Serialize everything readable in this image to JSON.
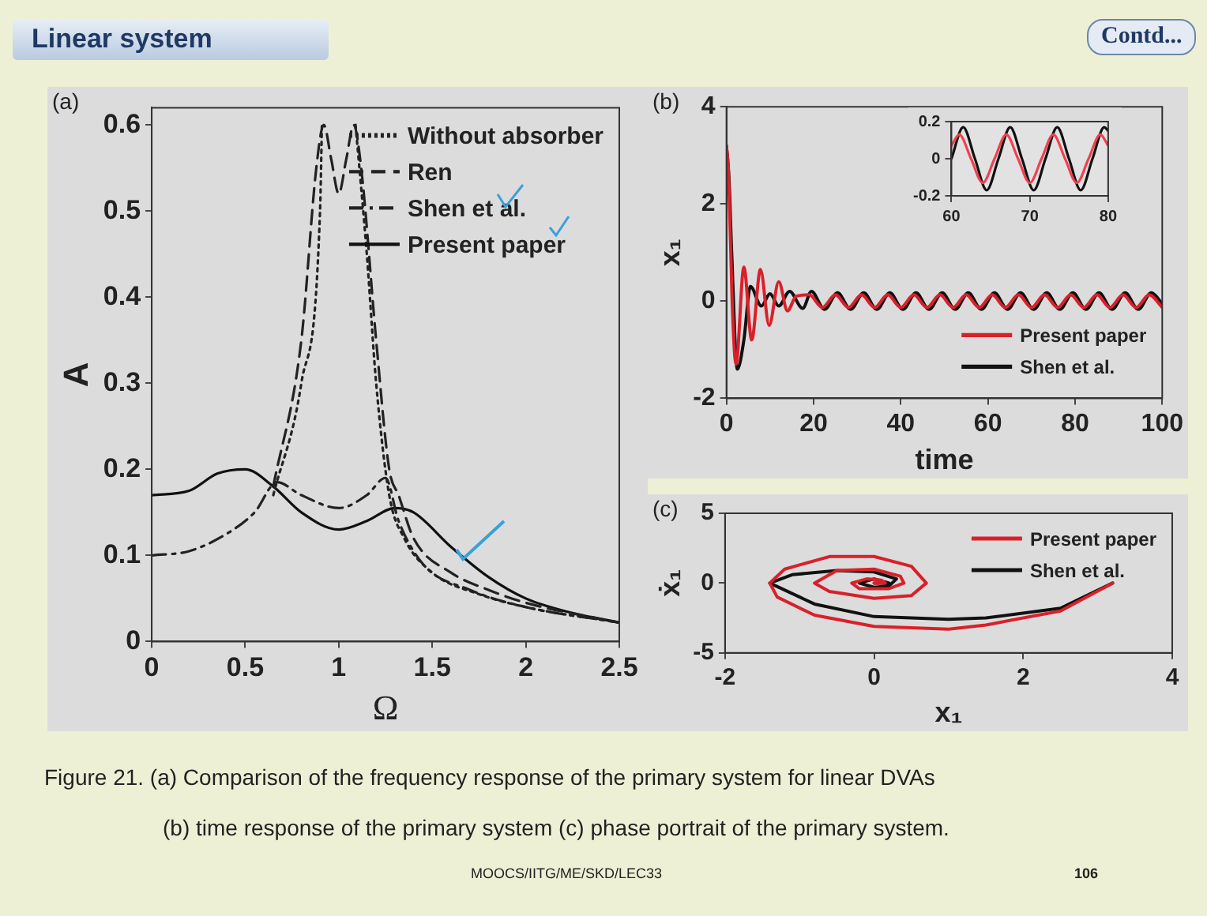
{
  "chart_data": [
    {
      "type": "line",
      "title": "Linear system",
      "xlabel": "Ω",
      "ylabel": "A",
      "xlim": [
        0,
        2.5
      ],
      "ylim": [
        0,
        0.62
      ],
      "xticks": [
        0,
        0.5,
        1,
        1.5,
        2,
        2.5
      ],
      "yticks": [
        0,
        0.1,
        0.2,
        0.3,
        0.4,
        0.5,
        0.6
      ],
      "grid": false,
      "legend": "top right",
      "marker": "none",
      "annotations": [
        "(a)",
        "Contd...",
        "Figure 21. (a) Comparison of the frequency response of the primary system for linear DVAs",
        "(b) time response of the primary system (c) phase portrait of the primary system.",
        "MOOCS/IITG/ME/SKD/LEC33",
        "106"
      ],
      "series": [
        {
          "name": "Without absorber",
          "color": "#222222",
          "line_style": "dotted",
          "x": [
            0.65,
            0.8,
            0.9,
            0.91,
            1.0,
            1.09,
            1.15,
            1.2,
            1.27,
            1.35,
            1.5,
            1.75,
            2,
            2.5
          ],
          "values": [
            0.17,
            0.3,
            0.5,
            0.6,
            null,
            0.6,
            0.45,
            0.3,
            0.17,
            0.12,
            0.08,
            0.055,
            0.04,
            0.022
          ]
        },
        {
          "name": "Ren",
          "color": "#222222",
          "line_style": "dashed",
          "x": [
            0.65,
            0.8,
            0.88,
            0.92,
            0.96,
            1.0,
            1.04,
            1.08,
            1.12,
            1.2,
            1.27,
            1.32,
            1.4,
            1.6,
            1.8,
            2,
            2.5
          ],
          "values": [
            0.18,
            0.35,
            0.55,
            0.6,
            0.56,
            0.52,
            0.56,
            0.6,
            0.55,
            0.35,
            0.2,
            0.17,
            0.12,
            0.08,
            0.06,
            0.045,
            0.022
          ]
        },
        {
          "name": "Shen et al.",
          "color": "#222222",
          "line_style": "dashdot",
          "x": [
            0,
            0.2,
            0.4,
            0.55,
            0.67,
            0.8,
            1,
            1.15,
            1.25,
            1.32,
            1.45,
            1.7,
            2,
            2.5
          ],
          "values": [
            0.1,
            0.105,
            0.125,
            0.15,
            0.185,
            0.17,
            0.155,
            0.17,
            0.19,
            0.14,
            0.09,
            0.06,
            0.04,
            0.022
          ]
        },
        {
          "name": "Present paper",
          "color": "#111111",
          "line_style": "solid",
          "x": [
            0,
            0.2,
            0.35,
            0.5,
            0.65,
            0.8,
            1,
            1.15,
            1.3,
            1.4,
            1.6,
            1.8,
            2,
            2.25,
            2.5
          ],
          "values": [
            0.17,
            0.175,
            0.195,
            0.2,
            0.18,
            0.15,
            0.13,
            0.14,
            0.155,
            0.15,
            0.11,
            0.075,
            0.05,
            0.033,
            0.022
          ]
        }
      ]
    },
    {
      "type": "line",
      "xlabel": "time",
      "ylabel": "x₁",
      "xlim": [
        0,
        100
      ],
      "ylim": [
        -2,
        4
      ],
      "xticks": [
        0,
        20,
        40,
        60,
        80,
        100
      ],
      "yticks": [
        -2,
        0,
        2,
        4
      ],
      "grid": false,
      "legend": "bottom right",
      "marker": "none",
      "annotations": [
        "(b)"
      ],
      "series": [
        {
          "name": "Present paper",
          "color": "#d9202a",
          "line_style": "solid",
          "x": [
            0,
            0.5,
            1.3,
            2.2,
            4,
            5.8,
            7.8,
            9.8,
            12,
            14,
            16,
            19,
            22,
            25,
            28,
            31,
            34,
            37,
            40,
            43,
            46,
            49,
            52,
            55,
            58,
            61,
            64,
            67,
            70,
            73,
            76,
            79,
            82,
            85,
            88,
            91,
            94,
            97,
            100
          ],
          "values": [
            3.2,
            2.6,
            0,
            -1.3,
            0.7,
            -0.8,
            0.65,
            -0.5,
            0.4,
            -0.2,
            0.1,
            0.13,
            -0.13,
            0.13,
            -0.13,
            0.13,
            -0.13,
            0.13,
            -0.13,
            0.13,
            -0.13,
            0.13,
            -0.13,
            0.13,
            -0.13,
            0.13,
            -0.13,
            0.13,
            -0.13,
            0.13,
            -0.13,
            0.13,
            -0.13,
            0.13,
            -0.13,
            0.13,
            -0.13,
            0.13,
            -0.13
          ]
        },
        {
          "name": "Shen et al.",
          "color": "#111111",
          "line_style": "solid",
          "x": [
            0,
            0.6,
            1.2,
            2.5,
            4,
            5.5,
            8,
            10,
            12,
            14.5,
            17.5,
            19.5,
            22.5,
            25.5,
            28.5,
            31.5,
            34.5,
            37.5,
            40.5,
            43.5,
            46.5,
            49.5,
            52.5,
            55.5,
            58.5,
            61.5,
            64.5,
            67.5,
            70.5,
            73.5,
            76.5,
            79.5,
            82.5,
            85.5,
            88.5,
            91.5,
            94.5,
            97.5,
            100
          ],
          "values": [
            3.2,
            2.5,
            1,
            -1.4,
            -0.8,
            0.3,
            -0.1,
            0.15,
            -0.1,
            0.2,
            -0.15,
            0.2,
            -0.17,
            0.17,
            -0.17,
            0.17,
            -0.17,
            0.17,
            -0.17,
            0.17,
            -0.17,
            0.17,
            -0.17,
            0.17,
            -0.17,
            0.17,
            -0.17,
            0.17,
            -0.17,
            0.17,
            -0.17,
            0.17,
            -0.17,
            0.17,
            -0.17,
            0.17,
            -0.17,
            0.17,
            -0.05
          ]
        }
      ]
    },
    {
      "type": "line",
      "xlim": [
        60,
        80
      ],
      "ylim": [
        -0.2,
        0.2
      ],
      "xticks": [
        60,
        70,
        80
      ],
      "yticks": [
        -0.2,
        0,
        0.2
      ],
      "grid": false,
      "marker": "none",
      "series": [
        {
          "color": "#f04050",
          "line_style": "solid",
          "x": [
            60,
            61,
            62.5,
            64,
            65.5,
            67,
            68.5,
            70,
            71.5,
            73,
            74.5,
            76,
            77.5,
            79,
            80
          ],
          "values": [
            0.07,
            0.13,
            0,
            -0.13,
            0,
            0.13,
            0,
            -0.13,
            0,
            0.13,
            0,
            -0.13,
            0,
            0.13,
            0.07
          ]
        },
        {
          "color": "#111111",
          "line_style": "solid",
          "x": [
            60,
            61.5,
            63,
            64.5,
            66,
            67.5,
            69,
            70.5,
            72,
            73.5,
            75,
            76.5,
            78,
            79.5,
            80
          ],
          "values": [
            0,
            0.17,
            0,
            -0.17,
            0,
            0.17,
            0,
            -0.17,
            0,
            0.17,
            0,
            -0.17,
            0,
            0.17,
            0.15
          ]
        }
      ]
    },
    {
      "type": "line",
      "xlabel": "x₁",
      "ylabel": "ẋ₁",
      "xlim": [
        -2,
        4
      ],
      "ylim": [
        -5,
        5
      ],
      "xticks": [
        -2,
        0,
        2,
        4
      ],
      "yticks": [
        -5,
        0,
        5
      ],
      "grid": false,
      "legend": "top right",
      "marker": "none",
      "annotations": [
        "(c)"
      ],
      "series": [
        {
          "name": "Present paper",
          "color": "#d9202a",
          "line_style": "solid",
          "x": [
            3.2,
            2.5,
            1.5,
            1,
            0,
            -0.8,
            -1.3,
            -1.4,
            -1.2,
            -0.6,
            0,
            0.5,
            0.7,
            0.5,
            0,
            -0.6,
            -0.8,
            -0.5,
            0,
            0.35,
            0.4,
            0.2,
            -0.2,
            -0.3,
            -0.1,
            0.1,
            0.15,
            0
          ],
          "values": [
            0,
            -2,
            -3,
            -3.3,
            -3.1,
            -2.3,
            -1,
            0,
            1,
            1.9,
            1.9,
            1.2,
            0,
            -0.9,
            -1.1,
            -0.6,
            0,
            0.9,
            1,
            0.5,
            0,
            -0.4,
            -0.4,
            0,
            0.3,
            0.2,
            0,
            0
          ]
        },
        {
          "name": "Shen et al.",
          "color": "#111111",
          "line_style": "solid",
          "x": [
            3.2,
            2.5,
            1.5,
            1,
            0,
            -0.8,
            -1.4,
            -1.1,
            -0.5,
            0,
            0.3,
            0.2,
            0,
            -0.2,
            0,
            0.2,
            0
          ],
          "values": [
            0,
            -1.8,
            -2.5,
            -2.6,
            -2.4,
            -1.5,
            0,
            0.6,
            0.9,
            0.8,
            0.3,
            -0.2,
            -0.3,
            0,
            0.3,
            0,
            0
          ]
        }
      ]
    }
  ]
}
